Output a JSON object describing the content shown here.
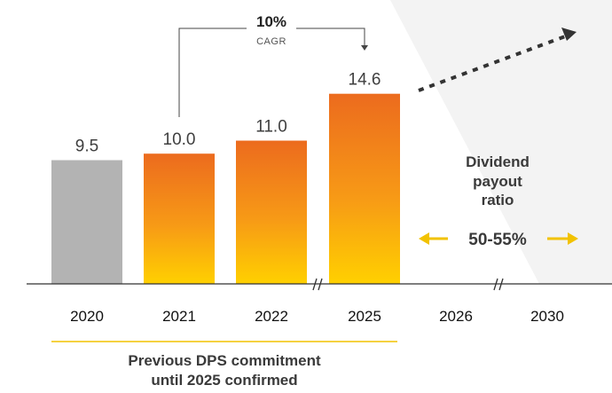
{
  "chart_data": {
    "type": "bar",
    "categories": [
      "2020",
      "2021",
      "2022",
      "2025",
      "2026",
      "2030"
    ],
    "values": [
      9.5,
      10.0,
      11.0,
      14.6,
      null,
      null
    ],
    "value_labels": [
      "9.5",
      "10.0",
      "11.0",
      "14.6",
      "",
      ""
    ],
    "ylim": [
      0,
      15.6
    ],
    "grid": false,
    "axis_breaks": [
      "2022-2025",
      "2026-2030"
    ]
  },
  "cagr": {
    "value": "10%",
    "label": "CAGR"
  },
  "payout": {
    "line1": "Dividend",
    "line2": "payout",
    "line3": "ratio",
    "range": "50-55%"
  },
  "footnote": {
    "line1": "Previous DPS commitment",
    "line2": "until 2025 confirmed"
  },
  "colors": {
    "grey_bar": "#b3b3b3",
    "orange_top": "#ec6b1e",
    "yellow_bottom": "#ffd000",
    "accent_yellow": "#f2c200",
    "axis": "#333333",
    "background_panel": "#f3f3f3"
  }
}
